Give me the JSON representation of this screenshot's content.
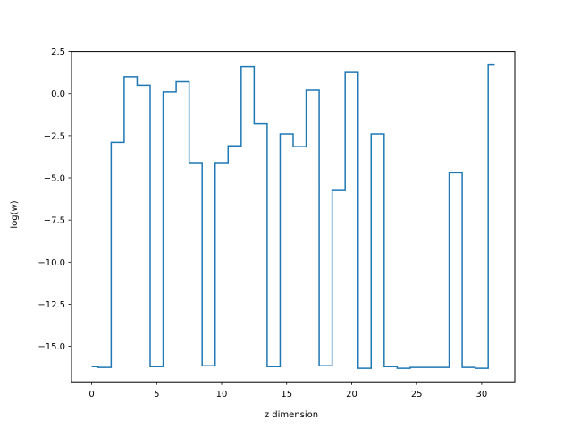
{
  "chart_data": {
    "type": "line",
    "drawstyle": "steps-mid",
    "xlabel": "z dimension",
    "ylabel": "log(w)",
    "xlim": [
      -1.55,
      32.55
    ],
    "ylim": [
      -17.1,
      2.5
    ],
    "xticks": [
      0,
      5,
      10,
      15,
      20,
      25,
      30
    ],
    "xtick_labels": [
      "0",
      "5",
      "10",
      "15",
      "20",
      "25",
      "30"
    ],
    "yticks": [
      2.5,
      0.0,
      -2.5,
      -5.0,
      -7.5,
      -10.0,
      -12.5,
      -15.0
    ],
    "ytick_labels": [
      "2.5",
      "0.0",
      "−2.5",
      "−5.0",
      "−7.5",
      "−10.0",
      "−12.5",
      "−15.0"
    ],
    "grid": false,
    "color": "#1f77b4",
    "series": [
      {
        "x": [
          0,
          1,
          2,
          3,
          4,
          5,
          6,
          7,
          8,
          9,
          10,
          11,
          12,
          13,
          14,
          15,
          16,
          17,
          18,
          19,
          20,
          21,
          22,
          23,
          24,
          25,
          26,
          27,
          28,
          29,
          30,
          31
        ],
        "y": [
          -16.2,
          -16.25,
          -2.9,
          1.0,
          0.5,
          -16.2,
          0.1,
          0.7,
          -4.1,
          -16.15,
          -4.1,
          -3.1,
          1.6,
          -1.8,
          -16.2,
          -2.4,
          -3.15,
          0.2,
          -16.15,
          -5.75,
          1.25,
          -16.3,
          -2.4,
          -16.2,
          -16.3,
          -16.25,
          -16.25,
          -16.25,
          -4.7,
          -16.25,
          -16.3,
          1.7
        ]
      }
    ]
  }
}
